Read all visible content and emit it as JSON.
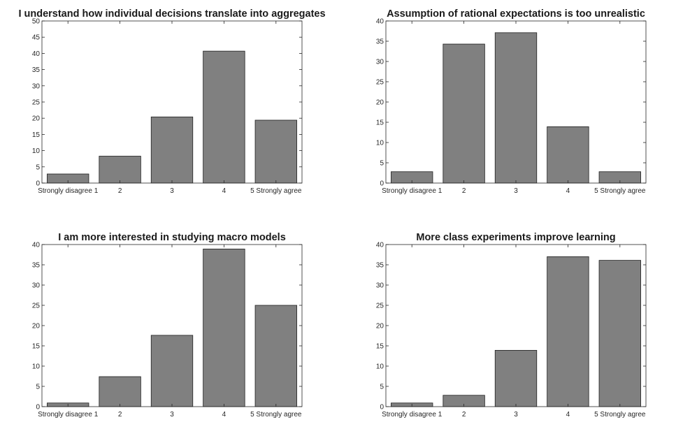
{
  "chart_data": [
    {
      "type": "bar",
      "title": "I understand how individual decisions translate into aggregates",
      "categories": [
        "Strongly disagree 1",
        "2",
        "3",
        "4",
        "5 Strongly agree"
      ],
      "values": [
        2.8,
        8.3,
        20.4,
        40.7,
        19.4
      ],
      "xlabel": "",
      "ylabel": "",
      "ylim": [
        0,
        50
      ],
      "yticks": [
        0,
        5,
        10,
        15,
        20,
        25,
        30,
        35,
        40,
        45,
        50
      ],
      "bar_color": "#808080",
      "grid": false
    },
    {
      "type": "bar",
      "title": "Assumption of rational expectations is too unrealistic",
      "categories": [
        "Strongly disagree 1",
        "2",
        "3",
        "4",
        "5 Strongly agree"
      ],
      "values": [
        2.8,
        34.3,
        37.1,
        13.9,
        2.8
      ],
      "xlabel": "",
      "ylabel": "",
      "ylim": [
        0,
        40
      ],
      "yticks": [
        0,
        5,
        10,
        15,
        20,
        25,
        30,
        35,
        40
      ],
      "bar_color": "#808080",
      "grid": false
    },
    {
      "type": "bar",
      "title": "I am more interested in studying macro models",
      "categories": [
        "Strongly disagree 1",
        "2",
        "3",
        "4",
        "5 Strongly agree"
      ],
      "values": [
        0.9,
        7.4,
        17.6,
        38.9,
        25.0
      ],
      "xlabel": "",
      "ylabel": "",
      "ylim": [
        0,
        40
      ],
      "yticks": [
        0,
        5,
        10,
        15,
        20,
        25,
        30,
        35,
        40
      ],
      "bar_color": "#808080",
      "grid": false
    },
    {
      "type": "bar",
      "title": "More class experiments improve learning",
      "categories": [
        "Strongly disagree 1",
        "2",
        "3",
        "4",
        "5 Strongly agree"
      ],
      "values": [
        0.9,
        2.8,
        13.9,
        37.0,
        36.1
      ],
      "xlabel": "",
      "ylabel": "",
      "ylim": [
        0,
        40
      ],
      "yticks": [
        0,
        5,
        10,
        15,
        20,
        25,
        30,
        35,
        40
      ],
      "bar_color": "#808080",
      "grid": false
    }
  ]
}
